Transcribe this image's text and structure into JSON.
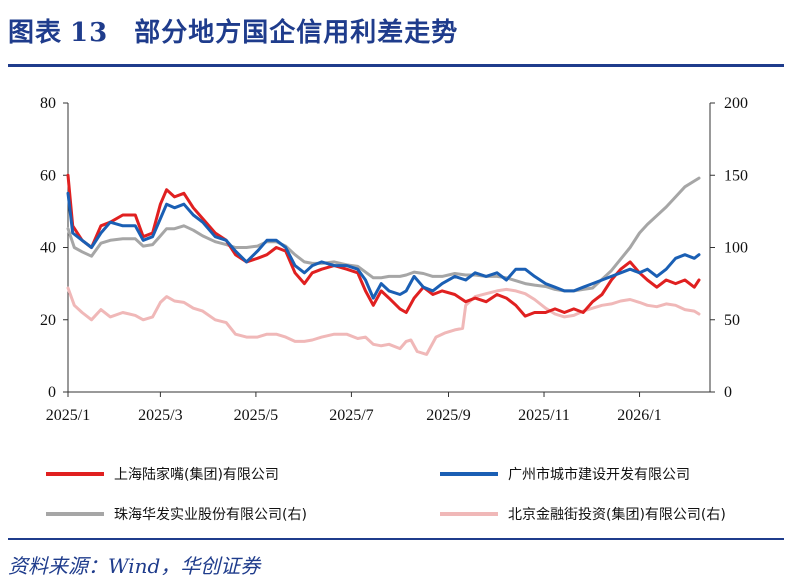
{
  "header": {
    "figure_label": "图表",
    "figure_number": "13",
    "title": "部分地方国企信用利差走势"
  },
  "source": "资料来源：Wind，华创证券",
  "chart_data": {
    "type": "line",
    "x_ticks": [
      "2025/1",
      "2025/3",
      "2025/5",
      "2025/7",
      "2025/9",
      "2025/11",
      "2026/1"
    ],
    "x_range": [
      "2025-01-01",
      "2026-02-15"
    ],
    "left_axis": {
      "ylim": [
        0,
        80
      ],
      "ticks": [
        0,
        20,
        40,
        60,
        80
      ]
    },
    "right_axis": {
      "ylim": [
        0,
        200
      ],
      "ticks": [
        0,
        50,
        100,
        150,
        200
      ]
    },
    "grid": false,
    "legend_position": "bottom",
    "series": [
      {
        "name": "上海陆家嘴(集团)有限公司",
        "axis": "left",
        "color": "#e02020",
        "points": [
          [
            "2025-01-01",
            60
          ],
          [
            "2025-01-04",
            46
          ],
          [
            "2025-01-10",
            42
          ],
          [
            "2025-01-16",
            40
          ],
          [
            "2025-01-22",
            46
          ],
          [
            "2025-01-28",
            47
          ],
          [
            "2025-02-05",
            49
          ],
          [
            "2025-02-13",
            49
          ],
          [
            "2025-02-18",
            43
          ],
          [
            "2025-02-24",
            44
          ],
          [
            "2025-03-01",
            52
          ],
          [
            "2025-03-05",
            56
          ],
          [
            "2025-03-10",
            54
          ],
          [
            "2025-03-16",
            55
          ],
          [
            "2025-03-22",
            51
          ],
          [
            "2025-03-28",
            48
          ],
          [
            "2025-04-05",
            44
          ],
          [
            "2025-04-12",
            42
          ],
          [
            "2025-04-18",
            38
          ],
          [
            "2025-04-25",
            36
          ],
          [
            "2025-05-02",
            37
          ],
          [
            "2025-05-08",
            38
          ],
          [
            "2025-05-14",
            40
          ],
          [
            "2025-05-20",
            39
          ],
          [
            "2025-05-26",
            33
          ],
          [
            "2025-06-01",
            30
          ],
          [
            "2025-06-06",
            33
          ],
          [
            "2025-06-12",
            34
          ],
          [
            "2025-06-20",
            35
          ],
          [
            "2025-06-28",
            34
          ],
          [
            "2025-07-05",
            33
          ],
          [
            "2025-07-10",
            28
          ],
          [
            "2025-07-15",
            24
          ],
          [
            "2025-07-20",
            28
          ],
          [
            "2025-07-25",
            26
          ],
          [
            "2025-08-01",
            23
          ],
          [
            "2025-08-05",
            22
          ],
          [
            "2025-08-10",
            26
          ],
          [
            "2025-08-16",
            29
          ],
          [
            "2025-08-22",
            27
          ],
          [
            "2025-08-28",
            28
          ],
          [
            "2025-09-05",
            27
          ],
          [
            "2025-09-12",
            25
          ],
          [
            "2025-09-18",
            26
          ],
          [
            "2025-09-25",
            25
          ],
          [
            "2025-10-02",
            27
          ],
          [
            "2025-10-08",
            26
          ],
          [
            "2025-10-14",
            24
          ],
          [
            "2025-10-20",
            21
          ],
          [
            "2025-10-26",
            22
          ],
          [
            "2025-11-02",
            22
          ],
          [
            "2025-11-08",
            23
          ],
          [
            "2025-11-14",
            22
          ],
          [
            "2025-11-20",
            23
          ],
          [
            "2025-11-26",
            22
          ],
          [
            "2025-12-02",
            25
          ],
          [
            "2025-12-08",
            27
          ],
          [
            "2025-12-14",
            31
          ],
          [
            "2025-12-20",
            34
          ],
          [
            "2025-12-26",
            36
          ],
          [
            "2026-01-01",
            33
          ],
          [
            "2026-01-06",
            31
          ],
          [
            "2026-01-12",
            29
          ],
          [
            "2026-01-18",
            31
          ],
          [
            "2026-01-24",
            30
          ],
          [
            "2026-01-30",
            31
          ],
          [
            "2026-02-05",
            29
          ],
          [
            "2026-02-08",
            31
          ]
        ]
      },
      {
        "name": "广州市城市建设开发有限公司",
        "axis": "left",
        "color": "#1a5fb4",
        "points": [
          [
            "2025-01-01",
            55
          ],
          [
            "2025-01-04",
            44
          ],
          [
            "2025-01-10",
            42
          ],
          [
            "2025-01-16",
            40
          ],
          [
            "2025-01-22",
            44
          ],
          [
            "2025-01-28",
            47
          ],
          [
            "2025-02-05",
            46
          ],
          [
            "2025-02-13",
            46
          ],
          [
            "2025-02-18",
            42
          ],
          [
            "2025-02-24",
            43
          ],
          [
            "2025-03-01",
            48
          ],
          [
            "2025-03-05",
            52
          ],
          [
            "2025-03-10",
            51
          ],
          [
            "2025-03-16",
            52
          ],
          [
            "2025-03-22",
            49
          ],
          [
            "2025-03-28",
            47
          ],
          [
            "2025-04-05",
            43
          ],
          [
            "2025-04-12",
            42
          ],
          [
            "2025-04-18",
            39
          ],
          [
            "2025-04-25",
            36
          ],
          [
            "2025-05-02",
            39
          ],
          [
            "2025-05-08",
            42
          ],
          [
            "2025-05-14",
            42
          ],
          [
            "2025-05-20",
            40
          ],
          [
            "2025-05-26",
            35
          ],
          [
            "2025-06-01",
            33
          ],
          [
            "2025-06-06",
            35
          ],
          [
            "2025-06-12",
            36
          ],
          [
            "2025-06-20",
            35
          ],
          [
            "2025-06-28",
            35
          ],
          [
            "2025-07-05",
            34
          ],
          [
            "2025-07-10",
            31
          ],
          [
            "2025-07-15",
            26
          ],
          [
            "2025-07-20",
            30
          ],
          [
            "2025-07-25",
            28
          ],
          [
            "2025-08-01",
            27
          ],
          [
            "2025-08-05",
            28
          ],
          [
            "2025-08-10",
            32
          ],
          [
            "2025-08-16",
            29
          ],
          [
            "2025-08-22",
            28
          ],
          [
            "2025-08-28",
            30
          ],
          [
            "2025-09-05",
            32
          ],
          [
            "2025-09-12",
            31
          ],
          [
            "2025-09-18",
            33
          ],
          [
            "2025-09-25",
            32
          ],
          [
            "2025-10-02",
            33
          ],
          [
            "2025-10-08",
            31
          ],
          [
            "2025-10-14",
            34
          ],
          [
            "2025-10-20",
            34
          ],
          [
            "2025-10-26",
            32
          ],
          [
            "2025-11-02",
            30
          ],
          [
            "2025-11-08",
            29
          ],
          [
            "2025-11-14",
            28
          ],
          [
            "2025-11-20",
            28
          ],
          [
            "2025-11-26",
            29
          ],
          [
            "2025-12-02",
            30
          ],
          [
            "2025-12-08",
            31
          ],
          [
            "2025-12-14",
            32
          ],
          [
            "2025-12-20",
            33
          ],
          [
            "2025-12-26",
            34
          ],
          [
            "2026-01-01",
            33
          ],
          [
            "2026-01-06",
            34
          ],
          [
            "2026-01-12",
            32
          ],
          [
            "2026-01-18",
            34
          ],
          [
            "2026-01-24",
            37
          ],
          [
            "2026-01-30",
            38
          ],
          [
            "2026-02-05",
            37
          ],
          [
            "2026-02-08",
            38
          ]
        ]
      },
      {
        "name": "珠海华发实业股份有限公司(右)",
        "axis": "right",
        "color": "#a6a6a6",
        "points": [
          [
            "2025-01-01",
            113
          ],
          [
            "2025-01-05",
            100
          ],
          [
            "2025-01-10",
            97
          ],
          [
            "2025-01-16",
            94
          ],
          [
            "2025-01-22",
            103
          ],
          [
            "2025-01-28",
            105
          ],
          [
            "2025-02-05",
            106
          ],
          [
            "2025-02-13",
            106
          ],
          [
            "2025-02-18",
            101
          ],
          [
            "2025-02-24",
            102
          ],
          [
            "2025-03-01",
            108
          ],
          [
            "2025-03-05",
            113
          ],
          [
            "2025-03-10",
            113
          ],
          [
            "2025-03-16",
            115
          ],
          [
            "2025-03-22",
            112
          ],
          [
            "2025-03-28",
            108
          ],
          [
            "2025-04-05",
            104
          ],
          [
            "2025-04-12",
            102
          ],
          [
            "2025-04-18",
            100
          ],
          [
            "2025-04-25",
            100
          ],
          [
            "2025-05-02",
            101
          ],
          [
            "2025-05-08",
            104
          ],
          [
            "2025-05-14",
            104
          ],
          [
            "2025-05-20",
            101
          ],
          [
            "2025-05-26",
            95
          ],
          [
            "2025-06-01",
            90
          ],
          [
            "2025-06-06",
            89
          ],
          [
            "2025-06-12",
            89
          ],
          [
            "2025-06-20",
            90
          ],
          [
            "2025-06-28",
            88
          ],
          [
            "2025-07-05",
            87
          ],
          [
            "2025-07-10",
            83
          ],
          [
            "2025-07-15",
            79
          ],
          [
            "2025-07-20",
            79
          ],
          [
            "2025-07-25",
            80
          ],
          [
            "2025-08-01",
            80
          ],
          [
            "2025-08-05",
            81
          ],
          [
            "2025-08-10",
            83
          ],
          [
            "2025-08-16",
            82
          ],
          [
            "2025-08-22",
            80
          ],
          [
            "2025-08-28",
            80
          ],
          [
            "2025-09-05",
            82
          ],
          [
            "2025-09-12",
            81
          ],
          [
            "2025-09-18",
            81
          ],
          [
            "2025-09-25",
            80
          ],
          [
            "2025-10-02",
            80
          ],
          [
            "2025-10-08",
            79
          ],
          [
            "2025-10-14",
            77
          ],
          [
            "2025-10-20",
            75
          ],
          [
            "2025-10-26",
            74
          ],
          [
            "2025-11-02",
            73
          ],
          [
            "2025-11-08",
            71
          ],
          [
            "2025-11-14",
            70
          ],
          [
            "2025-11-20",
            70
          ],
          [
            "2025-11-26",
            71
          ],
          [
            "2025-12-02",
            72
          ],
          [
            "2025-12-08",
            78
          ],
          [
            "2025-12-14",
            84
          ],
          [
            "2025-12-20",
            92
          ],
          [
            "2025-12-26",
            100
          ],
          [
            "2026-01-01",
            110
          ],
          [
            "2026-01-06",
            116
          ],
          [
            "2026-01-12",
            122
          ],
          [
            "2026-01-18",
            128
          ],
          [
            "2026-01-24",
            135
          ],
          [
            "2026-01-30",
            142
          ],
          [
            "2026-02-05",
            146
          ],
          [
            "2026-02-08",
            148
          ]
        ]
      },
      {
        "name": "北京金融街投资(集团)有限公司(右)",
        "axis": "right",
        "color": "#f0b8b8",
        "points": [
          [
            "2025-01-01",
            72
          ],
          [
            "2025-01-05",
            60
          ],
          [
            "2025-01-10",
            55
          ],
          [
            "2025-01-16",
            50
          ],
          [
            "2025-01-22",
            57
          ],
          [
            "2025-01-28",
            52
          ],
          [
            "2025-02-05",
            55
          ],
          [
            "2025-02-13",
            53
          ],
          [
            "2025-02-18",
            50
          ],
          [
            "2025-02-24",
            52
          ],
          [
            "2025-03-01",
            62
          ],
          [
            "2025-03-05",
            66
          ],
          [
            "2025-03-10",
            63
          ],
          [
            "2025-03-16",
            62
          ],
          [
            "2025-03-22",
            58
          ],
          [
            "2025-03-28",
            56
          ],
          [
            "2025-04-05",
            50
          ],
          [
            "2025-04-12",
            48
          ],
          [
            "2025-04-18",
            40
          ],
          [
            "2025-04-25",
            38
          ],
          [
            "2025-05-02",
            38
          ],
          [
            "2025-05-08",
            40
          ],
          [
            "2025-05-14",
            40
          ],
          [
            "2025-05-20",
            38
          ],
          [
            "2025-05-26",
            35
          ],
          [
            "2025-06-01",
            35
          ],
          [
            "2025-06-06",
            36
          ],
          [
            "2025-06-12",
            38
          ],
          [
            "2025-06-20",
            40
          ],
          [
            "2025-06-28",
            40
          ],
          [
            "2025-07-05",
            37
          ],
          [
            "2025-07-10",
            38
          ],
          [
            "2025-07-15",
            33
          ],
          [
            "2025-07-20",
            32
          ],
          [
            "2025-07-25",
            33
          ],
          [
            "2025-08-01",
            30
          ],
          [
            "2025-08-05",
            35
          ],
          [
            "2025-08-08",
            36
          ],
          [
            "2025-08-12",
            28
          ],
          [
            "2025-08-18",
            26
          ],
          [
            "2025-08-24",
            38
          ],
          [
            "2025-08-30",
            41
          ],
          [
            "2025-09-05",
            43
          ],
          [
            "2025-09-10",
            44
          ],
          [
            "2025-09-12",
            60
          ],
          [
            "2025-09-18",
            66
          ],
          [
            "2025-09-25",
            68
          ],
          [
            "2025-10-02",
            70
          ],
          [
            "2025-10-08",
            71
          ],
          [
            "2025-10-14",
            70
          ],
          [
            "2025-10-20",
            68
          ],
          [
            "2025-10-26",
            64
          ],
          [
            "2025-11-02",
            58
          ],
          [
            "2025-11-08",
            54
          ],
          [
            "2025-11-14",
            52
          ],
          [
            "2025-11-20",
            53
          ],
          [
            "2025-11-26",
            56
          ],
          [
            "2025-12-02",
            58
          ],
          [
            "2025-12-08",
            60
          ],
          [
            "2025-12-14",
            61
          ],
          [
            "2025-12-20",
            63
          ],
          [
            "2025-12-26",
            64
          ],
          [
            "2026-01-01",
            62
          ],
          [
            "2026-01-06",
            60
          ],
          [
            "2026-01-12",
            59
          ],
          [
            "2026-01-18",
            61
          ],
          [
            "2026-01-24",
            60
          ],
          [
            "2026-01-30",
            57
          ],
          [
            "2026-02-05",
            56
          ],
          [
            "2026-02-08",
            54
          ]
        ]
      }
    ]
  }
}
